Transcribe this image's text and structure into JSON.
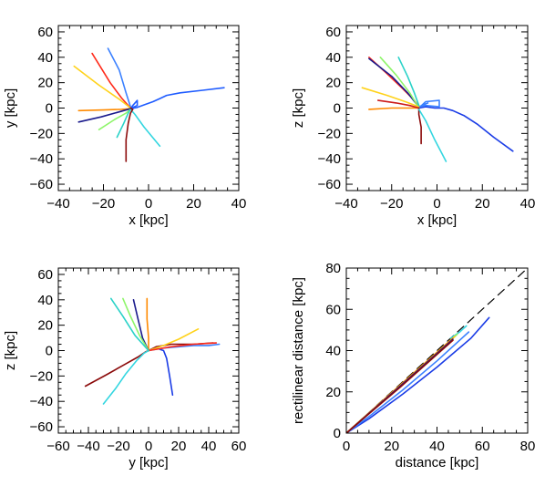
{
  "chart_data": [
    {
      "type": "line",
      "panel": "top-left",
      "xlabel": "x [kpc]",
      "ylabel": "y [kpc]",
      "xlim": [
        -40,
        40
      ],
      "ylim": [
        -65,
        65
      ],
      "xticks": [
        -40,
        -20,
        0,
        20,
        40
      ],
      "yticks": [
        -60,
        -40,
        -20,
        0,
        20,
        40,
        60
      ],
      "series": [
        {
          "color": "#1f5cff",
          "points": [
            [
              33.5,
              16
            ],
            [
              24,
              14
            ],
            [
              14,
              12
            ],
            [
              8,
              10
            ],
            [
              5,
              7.5
            ],
            [
              2,
              5
            ],
            [
              -2,
              2.5
            ],
            [
              -5,
              0.5
            ],
            [
              -8,
              -0.5
            ]
          ]
        },
        {
          "color": "#1f5cff",
          "points": [
            [
              -8,
              -0.5
            ],
            [
              -7,
              2
            ],
            [
              -5,
              6
            ],
            [
              -5,
              2
            ],
            [
              -9,
              -1
            ],
            [
              -7,
              0
            ]
          ]
        },
        {
          "color": "#3a80ff",
          "points": [
            [
              -18,
              47
            ],
            [
              -13,
              30
            ],
            [
              -10,
              12
            ],
            [
              -8,
              1
            ]
          ]
        },
        {
          "color": "#ff2a1a",
          "points": [
            [
              -25,
              43
            ],
            [
              -17,
              20
            ],
            [
              -12,
              8
            ],
            [
              -8,
              0
            ]
          ]
        },
        {
          "color": "#ffd21a",
          "points": [
            [
              -33,
              33
            ],
            [
              -22,
              18
            ],
            [
              -13,
              7
            ],
            [
              -8,
              0
            ]
          ]
        },
        {
          "color": "#ff8a00",
          "points": [
            [
              -31,
              -2
            ],
            [
              -20,
              -1.5
            ],
            [
              -12,
              -1
            ],
            [
              -8,
              -0.5
            ]
          ]
        },
        {
          "color": "#1a1a8c",
          "points": [
            [
              -31,
              -11
            ],
            [
              -21,
              -7
            ],
            [
              -13,
              -3
            ],
            [
              -8,
              -0.5
            ]
          ]
        },
        {
          "color": "#8ef56a",
          "points": [
            [
              -22,
              -17
            ],
            [
              -15,
              -9
            ],
            [
              -10,
              -4
            ],
            [
              -8,
              -1
            ]
          ]
        },
        {
          "color": "#2ad2c8",
          "points": [
            [
              -14,
              -23
            ],
            [
              -11,
              -12
            ],
            [
              -9,
              -4
            ],
            [
              -8,
              -1
            ]
          ]
        },
        {
          "color": "#33d6e0",
          "points": [
            [
              5,
              -30
            ],
            [
              -2,
              -15
            ],
            [
              -6,
              -5
            ],
            [
              -8,
              -1
            ]
          ]
        },
        {
          "color": "#8b0a0a",
          "points": [
            [
              -10,
              -42
            ],
            [
              -10,
              -25
            ],
            [
              -9,
              -12
            ],
            [
              -8,
              -4
            ],
            [
              -7,
              -1
            ],
            [
              -8,
              0
            ]
          ]
        }
      ]
    },
    {
      "type": "line",
      "panel": "top-right",
      "xlabel": "x [kpc]",
      "ylabel": "z [kpc]",
      "xlim": [
        -40,
        40
      ],
      "ylim": [
        -65,
        65
      ],
      "xticks": [
        -40,
        -20,
        0,
        20,
        40
      ],
      "yticks": [
        -60,
        -40,
        -20,
        0,
        20,
        40,
        60
      ],
      "series": [
        {
          "color": "#1a3ce6",
          "points": [
            [
              33.5,
              -34
            ],
            [
              25,
              -23
            ],
            [
              18,
              -13
            ],
            [
              12,
              -6
            ],
            [
              7,
              -2
            ],
            [
              3,
              0
            ],
            [
              -1,
              0
            ],
            [
              -5,
              1
            ],
            [
              -8,
              0
            ]
          ]
        },
        {
          "color": "#3a80ff",
          "points": [
            [
              -8,
              0
            ],
            [
              -5,
              5
            ],
            [
              1,
              6
            ],
            [
              1,
              1
            ],
            [
              -5,
              2
            ],
            [
              -8,
              1
            ],
            [
              -4,
              4
            ],
            [
              -8,
              1
            ]
          ]
        },
        {
          "color": "#ff2a1a",
          "points": [
            [
              -30,
              40
            ],
            [
              -22,
              27
            ],
            [
              -15,
              15
            ],
            [
              -10,
              6
            ],
            [
              -8,
              1
            ]
          ]
        },
        {
          "color": "#1a1a8c",
          "points": [
            [
              -30,
              39
            ],
            [
              -20,
              25
            ],
            [
              -13,
              12
            ],
            [
              -9,
              3
            ],
            [
              -8,
              0
            ]
          ]
        },
        {
          "color": "#8ef56a",
          "points": [
            [
              -25,
              40
            ],
            [
              -18,
              26
            ],
            [
              -12,
              12
            ],
            [
              -9,
              3
            ],
            [
              -8,
              0
            ]
          ]
        },
        {
          "color": "#ffd21a",
          "points": [
            [
              -33,
              16
            ],
            [
              -22,
              10
            ],
            [
              -14,
              5
            ],
            [
              -8,
              1
            ]
          ]
        },
        {
          "color": "#ff8a00",
          "points": [
            [
              -30,
              -1
            ],
            [
              -20,
              0
            ],
            [
              -12,
              0
            ],
            [
              -8,
              0
            ]
          ]
        },
        {
          "color": "#cc1a1a",
          "points": [
            [
              -26,
              6
            ],
            [
              -18,
              4
            ],
            [
              -12,
              2
            ],
            [
              -8,
              0
            ]
          ]
        },
        {
          "color": "#8b0a0a",
          "points": [
            [
              -7,
              -28
            ],
            [
              -7,
              -15
            ],
            [
              -8,
              -5
            ],
            [
              -8,
              0
            ]
          ]
        },
        {
          "color": "#2ad2c8",
          "points": [
            [
              -17,
              40
            ],
            [
              -13,
              25
            ],
            [
              -10,
              12
            ],
            [
              -8,
              2
            ]
          ]
        },
        {
          "color": "#33d6e0",
          "points": [
            [
              4,
              -42
            ],
            [
              -1,
              -25
            ],
            [
              -5,
              -10
            ],
            [
              -8,
              -1
            ]
          ]
        }
      ]
    },
    {
      "type": "line",
      "panel": "bottom-left",
      "xlabel": "y [kpc]",
      "ylabel": "z [kpc]",
      "xlim": [
        -60,
        60
      ],
      "ylim": [
        -65,
        65
      ],
      "xticks": [
        -60,
        -40,
        -20,
        0,
        20,
        40,
        60
      ],
      "yticks": [
        -60,
        -40,
        -20,
        0,
        20,
        40,
        60
      ],
      "series": [
        {
          "color": "#8b0a0a",
          "points": [
            [
              -42,
              -28
            ],
            [
              -28,
              -19
            ],
            [
              -16,
              -11
            ],
            [
              -7,
              -5
            ],
            [
              -2,
              -1
            ],
            [
              0,
              0
            ],
            [
              5,
              3
            ],
            [
              15,
              5
            ],
            [
              30,
              5
            ],
            [
              43,
              6
            ]
          ]
        },
        {
          "color": "#33d6e0",
          "points": [
            [
              -30,
              -42
            ],
            [
              -22,
              -30
            ],
            [
              -15,
              -18
            ],
            [
              -8,
              -8
            ],
            [
              -3,
              -2
            ],
            [
              0,
              0
            ]
          ]
        },
        {
          "color": "#1a3ce6",
          "points": [
            [
              16,
              -35
            ],
            [
              14,
              -20
            ],
            [
              12,
              -6
            ],
            [
              10,
              0
            ],
            [
              5,
              2
            ],
            [
              0,
              0
            ]
          ]
        },
        {
          "color": "#3a80ff",
          "points": [
            [
              47,
              5
            ],
            [
              40,
              4
            ],
            [
              30,
              4
            ],
            [
              20,
              3
            ],
            [
              10,
              2
            ],
            [
              0,
              0
            ]
          ]
        },
        {
          "color": "#ffd21a",
          "points": [
            [
              33,
              17
            ],
            [
              20,
              9
            ],
            [
              10,
              4
            ],
            [
              0,
              0
            ]
          ]
        },
        {
          "color": "#ff2a1a",
          "points": [
            [
              45,
              6
            ],
            [
              30,
              5
            ],
            [
              15,
              3
            ],
            [
              0,
              0
            ]
          ]
        },
        {
          "color": "#ff8a00",
          "points": [
            [
              -1,
              41
            ],
            [
              -1,
              25
            ],
            [
              0,
              10
            ],
            [
              0,
              0
            ]
          ]
        },
        {
          "color": "#1a1a8c",
          "points": [
            [
              -10,
              40
            ],
            [
              -7,
              25
            ],
            [
              -4,
              10
            ],
            [
              0,
              0
            ]
          ]
        },
        {
          "color": "#8ef56a",
          "points": [
            [
              -17,
              41
            ],
            [
              -12,
              27
            ],
            [
              -6,
              12
            ],
            [
              0,
              0
            ]
          ]
        },
        {
          "color": "#2ad2c8",
          "points": [
            [
              -25,
              41
            ],
            [
              -17,
              27
            ],
            [
              -9,
              12
            ],
            [
              0,
              0
            ]
          ]
        }
      ]
    },
    {
      "type": "line",
      "panel": "bottom-right",
      "xlabel": "distance [kpc]",
      "ylabel": "rectilinear distance [kpc]",
      "xlim": [
        0,
        80
      ],
      "ylim": [
        0,
        80
      ],
      "xticks": [
        0,
        20,
        40,
        60,
        80
      ],
      "yticks": [
        0,
        20,
        40,
        60,
        80
      ],
      "series": [
        {
          "color": "#000000",
          "dashed": true,
          "points": [
            [
              0,
              0
            ],
            [
              80,
              80
            ]
          ]
        },
        {
          "color": "#1a3ce6",
          "points": [
            [
              0,
              0
            ],
            [
              10,
              7
            ],
            [
              25,
              19
            ],
            [
              40,
              32
            ],
            [
              55,
              46
            ],
            [
              63,
              56
            ]
          ]
        },
        {
          "color": "#3a80ff",
          "points": [
            [
              0,
              0
            ],
            [
              10,
              8
            ],
            [
              25,
              21
            ],
            [
              40,
              35
            ],
            [
              54,
              49
            ]
          ]
        },
        {
          "color": "#33d6e0",
          "points": [
            [
              46,
              46
            ],
            [
              50,
              49
            ],
            [
              53,
              52
            ]
          ]
        },
        {
          "color": "#2ad2c8",
          "points": [
            [
              0,
              0
            ],
            [
              25,
              24
            ],
            [
              48,
              47
            ]
          ]
        },
        {
          "color": "#8ef56a",
          "points": [
            [
              0,
              0
            ],
            [
              25,
              24.5
            ],
            [
              49,
              48
            ]
          ]
        },
        {
          "color": "#ffd21a",
          "points": [
            [
              0,
              0
            ],
            [
              24,
              23.5
            ],
            [
              48,
              47
            ]
          ]
        },
        {
          "color": "#ff8a00",
          "points": [
            [
              0,
              0
            ],
            [
              24,
              23.5
            ],
            [
              47,
              46
            ]
          ]
        },
        {
          "color": "#ff2a1a",
          "points": [
            [
              0,
              0
            ],
            [
              24,
              23
            ],
            [
              47,
              45
            ]
          ]
        },
        {
          "color": "#1a1a8c",
          "points": [
            [
              0,
              0
            ],
            [
              24,
              23
            ],
            [
              47,
              45.5
            ]
          ]
        },
        {
          "color": "#8b0a0a",
          "points": [
            [
              0,
              0
            ],
            [
              24,
              22.5
            ],
            [
              47,
              45
            ]
          ]
        }
      ]
    }
  ]
}
